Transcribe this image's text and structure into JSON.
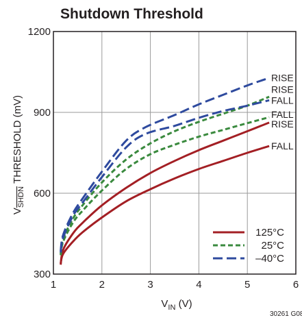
{
  "chart_data": {
    "type": "line",
    "title": "Shutdown Threshold",
    "xlabel": {
      "main": "V",
      "sub": "IN",
      "unit": " (V)"
    },
    "ylabel": {
      "main": "V",
      "sub": "SHDN",
      "rest": " THRESHOLD (mV)"
    },
    "xlim": [
      1,
      6
    ],
    "ylim": [
      300,
      1200
    ],
    "xticks": [
      "1",
      "2",
      "3",
      "4",
      "5",
      "6"
    ],
    "yticks": [
      "300",
      "600",
      "900",
      "1200"
    ],
    "grid": true,
    "legend_position": "bottom-right",
    "code": "30261 G08",
    "colors": {
      "125": "#a31f24",
      "25": "#3a8a3e",
      "-40": "#2e4a9e"
    },
    "series": [
      {
        "name": "125°C",
        "edge": "RISE",
        "style": "solid",
        "x": [
          1.15,
          1.2,
          1.4,
          1.6,
          2.0,
          2.5,
          3.0,
          3.5,
          4.0,
          4.5,
          5.0,
          5.45
        ],
        "y": [
          335,
          390,
          450,
          490,
          555,
          620,
          675,
          720,
          760,
          795,
          830,
          862
        ]
      },
      {
        "name": "125°C",
        "edge": "FALL",
        "style": "solid",
        "x": [
          1.15,
          1.2,
          1.4,
          1.6,
          2.0,
          2.5,
          3.0,
          3.5,
          4.0,
          4.5,
          5.0,
          5.45
        ],
        "y": [
          340,
          375,
          420,
          455,
          510,
          570,
          615,
          655,
          690,
          720,
          750,
          775
        ]
      },
      {
        "name": "25°C",
        "edge": "RISE",
        "style": "short-dash",
        "x": [
          1.15,
          1.2,
          1.4,
          1.6,
          2.0,
          2.5,
          3.0,
          3.5,
          4.0,
          4.5,
          5.0,
          5.45
        ],
        "y": [
          375,
          430,
          505,
          555,
          640,
          725,
          785,
          830,
          865,
          895,
          925,
          958
        ]
      },
      {
        "name": "25°C",
        "edge": "FALL",
        "style": "short-dash",
        "x": [
          1.15,
          1.2,
          1.4,
          1.6,
          2.0,
          2.5,
          3.0,
          3.5,
          4.0,
          4.5,
          5.0,
          5.45
        ],
        "y": [
          370,
          420,
          490,
          535,
          610,
          690,
          745,
          780,
          810,
          835,
          860,
          882
        ]
      },
      {
        "name": "–40°C",
        "edge": "RISE",
        "style": "long-dash",
        "x": [
          1.15,
          1.2,
          1.4,
          1.6,
          2.0,
          2.5,
          2.9,
          3.5,
          4.0,
          4.5,
          5.0,
          5.45
        ],
        "y": [
          385,
          445,
          525,
          580,
          680,
          795,
          845,
          890,
          930,
          965,
          1000,
          1028
        ]
      },
      {
        "name": "–40°C",
        "edge": "FALL",
        "style": "long-dash",
        "x": [
          1.15,
          1.2,
          1.4,
          1.6,
          2.0,
          2.5,
          2.9,
          3.5,
          4.0,
          4.5,
          5.0,
          5.45
        ],
        "y": [
          380,
          435,
          515,
          565,
          660,
          770,
          820,
          850,
          880,
          905,
          925,
          945
        ]
      }
    ],
    "end_labels": [
      {
        "text": "RISE",
        "y": 1028
      },
      {
        "text": "RISE",
        "y": 985
      },
      {
        "text": "FALL",
        "y": 945
      },
      {
        "text": "FALL",
        "y": 892
      },
      {
        "text": "RISE",
        "y": 857
      },
      {
        "text": "FALL",
        "y": 775
      }
    ],
    "legend": [
      {
        "label": "125°C",
        "color_key": "125",
        "style": "solid"
      },
      {
        "label": "25°C",
        "color_key": "25",
        "style": "short-dash"
      },
      {
        "label": "–40°C",
        "color_key": "-40",
        "style": "long-dash"
      }
    ]
  }
}
